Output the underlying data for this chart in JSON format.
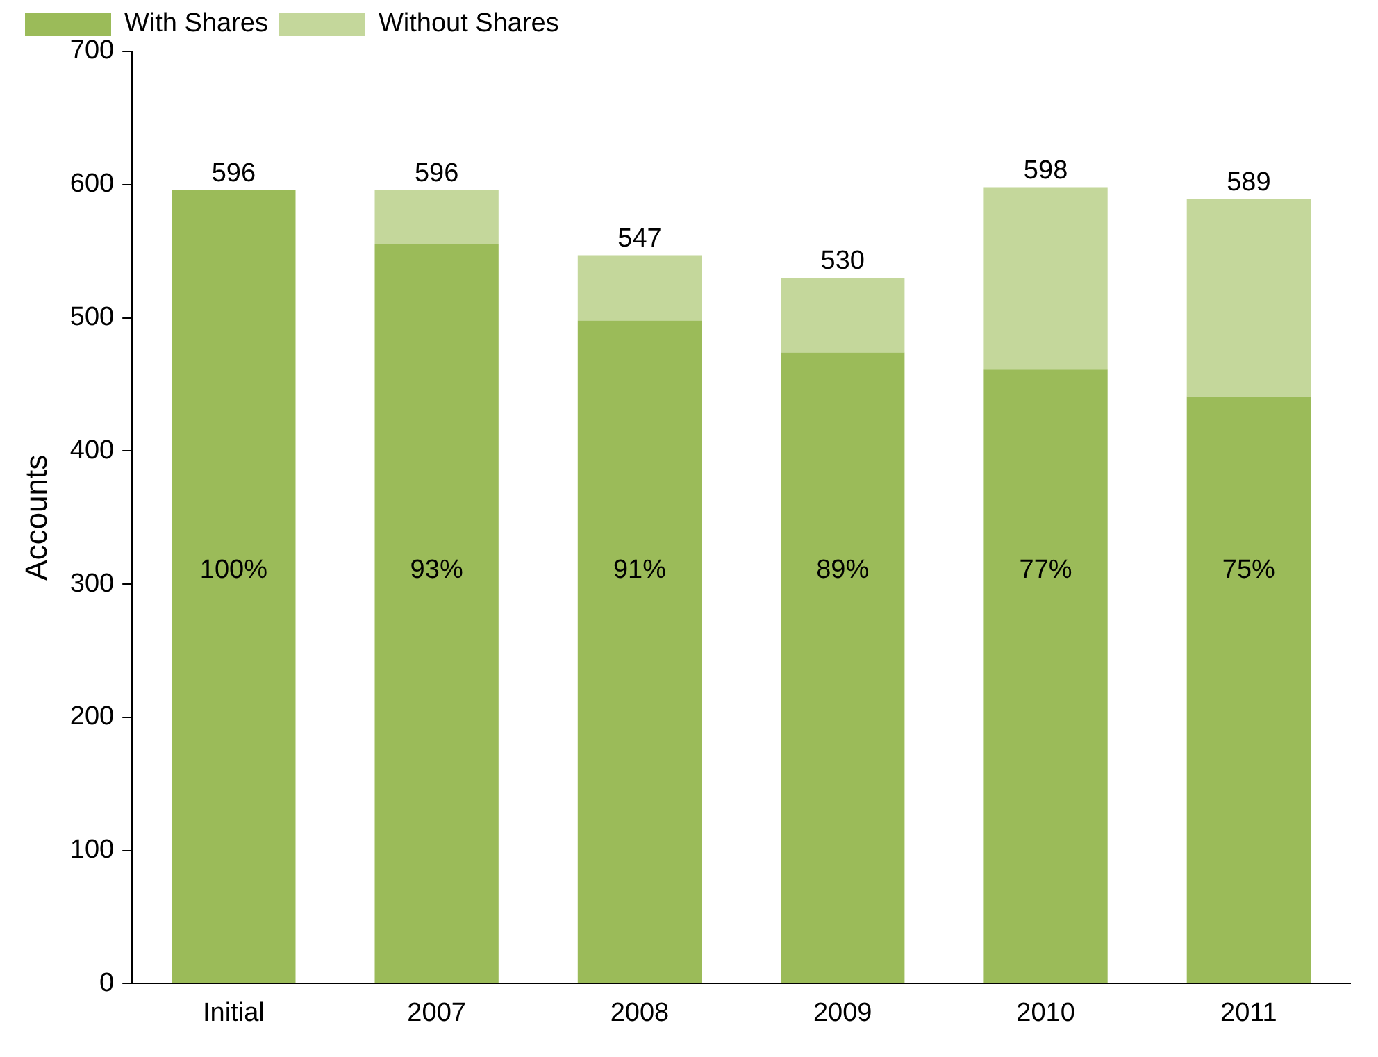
{
  "chart_data": {
    "type": "bar",
    "stacked": true,
    "ylabel": "Accounts",
    "categories": [
      "Initial",
      "2007",
      "2008",
      "2009",
      "2010",
      "2011"
    ],
    "series": [
      {
        "name": "With Shares",
        "color": "#9bbb59",
        "values": [
          596,
          555,
          498,
          474,
          461,
          441
        ]
      },
      {
        "name": "Without Shares",
        "color": "#c4d79b",
        "values": [
          0,
          41,
          49,
          56,
          137,
          148
        ]
      }
    ],
    "annotations": [
      "100%",
      "93%",
      "91%",
      "89%",
      "77%",
      "75%"
    ],
    "totals": [
      "596",
      "596",
      "547",
      "530",
      "598",
      "589"
    ],
    "ylim": [
      0,
      700
    ],
    "yticks": [
      0,
      100,
      200,
      300,
      400,
      500,
      600,
      700
    ],
    "grid": false,
    "legend": "top left"
  }
}
